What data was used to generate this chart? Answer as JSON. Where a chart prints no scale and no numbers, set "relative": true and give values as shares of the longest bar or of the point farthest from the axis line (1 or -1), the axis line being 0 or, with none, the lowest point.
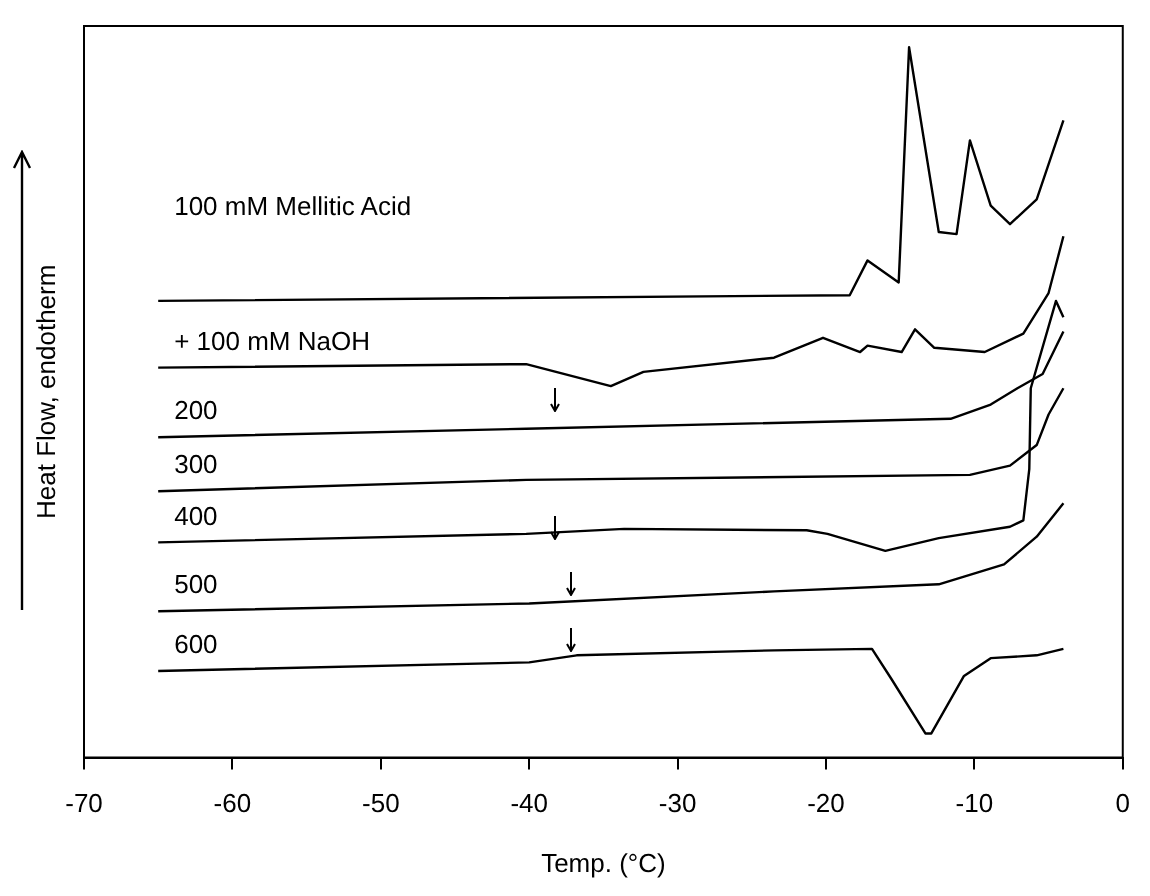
{
  "chart_data": {
    "type": "line",
    "relative": true,
    "xlabel": "Temp. (°C)",
    "ylabel": "Heat Flow, endotherm",
    "xlim": [
      -70,
      0
    ],
    "xticks": [
      -70,
      -60,
      -50,
      -40,
      -30,
      -20,
      -10,
      0
    ],
    "grid": false,
    "legend": false,
    "marker": "none",
    "line_style": "solid",
    "series": [
      {
        "name": "100 mM Mellitic Acid",
        "color": "#000000",
        "x": [
          -65,
          -18.4,
          -17.2,
          -15.1,
          -14.4,
          -12.4,
          -11.2,
          -10.3,
          -8.9,
          -7.6,
          -5.8,
          -4.0
        ],
        "values": [
          0.643,
          0.651,
          0.7,
          0.669,
          1.0,
          0.74,
          0.737,
          0.869,
          0.777,
          0.751,
          0.786,
          0.897
        ]
      },
      {
        "name": "+ 100 mM NaOH",
        "color": "#000000",
        "x": [
          -65,
          -40.2,
          -34.5,
          -32.3,
          -23.5,
          -20.2,
          -17.7,
          -17.2,
          -14.9,
          -14.0,
          -12.7,
          -9.3,
          -6.7,
          -5.0,
          -4.0
        ],
        "values": [
          0.549,
          0.554,
          0.523,
          0.543,
          0.563,
          0.591,
          0.571,
          0.58,
          0.571,
          0.603,
          0.577,
          0.571,
          0.597,
          0.654,
          0.734
        ]
      },
      {
        "name": "200",
        "color": "#000000",
        "x": [
          -65,
          -40.2,
          -11.6,
          -8.9,
          -7.1,
          -5.4,
          -4.0
        ],
        "values": [
          0.451,
          0.463,
          0.477,
          0.497,
          0.52,
          0.54,
          0.6
        ]
      },
      {
        "name": "300",
        "color": "#000000",
        "x": [
          -65,
          -40.2,
          -10.3,
          -7.6,
          -5.8,
          -5.0,
          -4.0
        ],
        "values": [
          0.375,
          0.391,
          0.398,
          0.411,
          0.44,
          0.483,
          0.52
        ]
      },
      {
        "name": "400",
        "color": "#000000",
        "x": [
          -65,
          -40.2,
          -33.6,
          -21.3,
          -19.9,
          -16.0,
          -12.4,
          -7.6,
          -6.7,
          -6.3,
          -6.2,
          -4.5,
          -4.0
        ],
        "values": [
          0.303,
          0.315,
          0.322,
          0.32,
          0.315,
          0.291,
          0.309,
          0.325,
          0.334,
          0.406,
          0.52,
          0.643,
          0.62
        ]
      },
      {
        "name": "500",
        "color": "#000000",
        "x": [
          -65,
          -40.0,
          -23.5,
          -12.4,
          -8.0,
          -5.8,
          -4.0
        ],
        "values": [
          0.206,
          0.217,
          0.234,
          0.244,
          0.272,
          0.311,
          0.358
        ]
      },
      {
        "name": "600",
        "color": "#000000",
        "x": [
          -65,
          -40.0,
          -36.8,
          -23.5,
          -16.9,
          -15.6,
          -13.3,
          -12.9,
          -10.7,
          -8.9,
          -5.8,
          -4.0
        ],
        "values": [
          0.122,
          0.134,
          0.144,
          0.151,
          0.153,
          0.111,
          0.034,
          0.034,
          0.115,
          0.14,
          0.144,
          0.153
        ]
      }
    ]
  }
}
